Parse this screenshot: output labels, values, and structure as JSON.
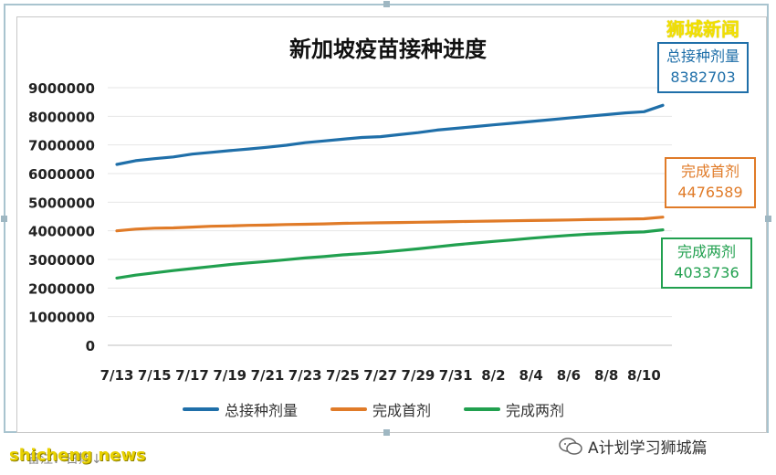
{
  "watermark_top": "狮城新闻",
  "callouts": {
    "total": {
      "label": "总接种剂量",
      "value": "8382703",
      "color": "#1f6fa9"
    },
    "first": {
      "label": "完成首剂",
      "value": "4476589",
      "color": "#e07b28"
    },
    "second": {
      "label": "完成两剂",
      "value": "4033736",
      "color": "#21a04f"
    }
  },
  "footer": {
    "watermark_left": "shicheng news",
    "note": "备注：日期↓",
    "account": "A计划学习狮城篇"
  },
  "chart_data": {
    "type": "line",
    "title": "新加坡疫苗接种进度",
    "xlabel": "",
    "ylabel": "",
    "ylim": [
      0,
      9000000
    ],
    "yticks": [
      0,
      1000000,
      2000000,
      3000000,
      4000000,
      5000000,
      6000000,
      7000000,
      8000000,
      9000000
    ],
    "x": [
      "7/13",
      "7/14",
      "7/15",
      "7/16",
      "7/17",
      "7/18",
      "7/19",
      "7/20",
      "7/21",
      "7/22",
      "7/23",
      "7/24",
      "7/25",
      "7/26",
      "7/27",
      "7/28",
      "7/29",
      "7/30",
      "7/31",
      "8/1",
      "8/2",
      "8/3",
      "8/4",
      "8/5",
      "8/6",
      "8/7",
      "8/8",
      "8/9",
      "8/10",
      "8/11"
    ],
    "xtick_labels": [
      "7/13",
      "7/15",
      "7/17",
      "7/19",
      "7/21",
      "7/23",
      "7/25",
      "7/27",
      "7/29",
      "7/31",
      "8/2",
      "8/4",
      "8/6",
      "8/8",
      "8/10"
    ],
    "grid": "horizontal",
    "legend": "bottom",
    "series": [
      {
        "name": "总接种剂量",
        "color": "#1f6fa9",
        "values": [
          6320000,
          6450000,
          6520000,
          6580000,
          6680000,
          6740000,
          6800000,
          6860000,
          6920000,
          6990000,
          7080000,
          7140000,
          7200000,
          7260000,
          7290000,
          7360000,
          7430000,
          7520000,
          7580000,
          7640000,
          7700000,
          7760000,
          7820000,
          7880000,
          7940000,
          8000000,
          8060000,
          8120000,
          8160000,
          8382703
        ]
      },
      {
        "name": "完成首剂",
        "color": "#e07b28",
        "values": [
          4000000,
          4060000,
          4090000,
          4100000,
          4130000,
          4160000,
          4170000,
          4190000,
          4200000,
          4220000,
          4230000,
          4240000,
          4260000,
          4270000,
          4280000,
          4290000,
          4300000,
          4310000,
          4320000,
          4330000,
          4340000,
          4350000,
          4360000,
          4370000,
          4380000,
          4390000,
          4400000,
          4410000,
          4420000,
          4476589
        ]
      },
      {
        "name": "完成两剂",
        "color": "#21a04f",
        "values": [
          2350000,
          2450000,
          2530000,
          2610000,
          2680000,
          2750000,
          2820000,
          2880000,
          2930000,
          2990000,
          3050000,
          3100000,
          3160000,
          3200000,
          3250000,
          3310000,
          3370000,
          3440000,
          3510000,
          3570000,
          3630000,
          3680000,
          3740000,
          3790000,
          3840000,
          3880000,
          3910000,
          3940000,
          3960000,
          4033736
        ]
      }
    ]
  }
}
